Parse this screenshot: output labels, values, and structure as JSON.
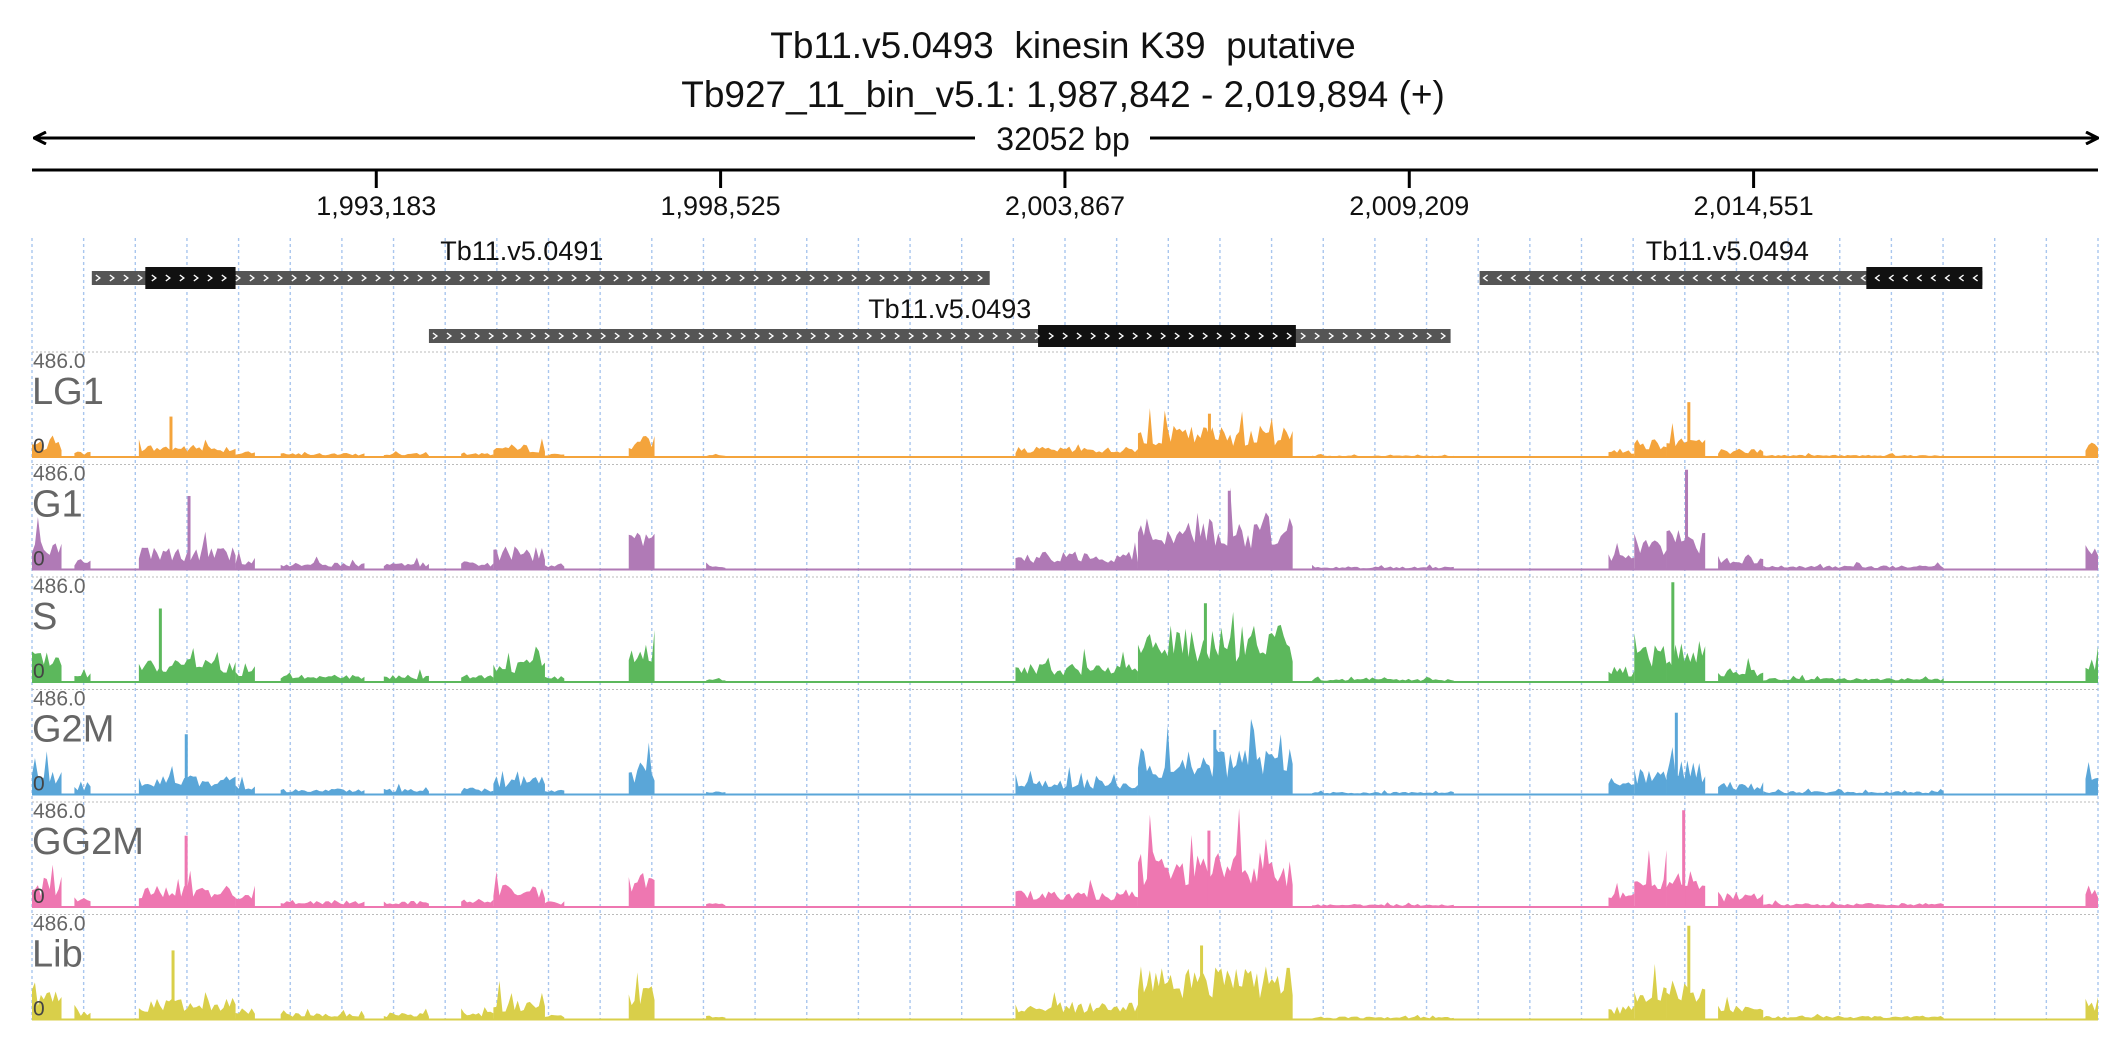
{
  "title": "Tb11.v5.0493  kinesin K39  putative",
  "subtitle": "Tb927_11_bin_v5.1: 1,987,842 - 2,019,894 (+)",
  "span_label": "32052 bp",
  "region": {
    "start": 1987842,
    "end": 2019894
  },
  "ticks": [
    {
      "pos": 1993183,
      "label": "1,993,183"
    },
    {
      "pos": 1998525,
      "label": "1,998,525"
    },
    {
      "pos": 2003867,
      "label": "2,003,867"
    },
    {
      "pos": 2009209,
      "label": "2,009,209"
    },
    {
      "pos": 2014551,
      "label": "2,014,551"
    }
  ],
  "genes": [
    {
      "id": "Tb11.v5.0491",
      "strand": "+",
      "start": 1988770,
      "end": 2002700,
      "cds_start": 1989600,
      "cds_end": 1991000,
      "row": 0
    },
    {
      "id": "Tb11.v5.0493",
      "strand": "+",
      "start": 1994000,
      "end": 2009850,
      "cds_start": 2003450,
      "cds_end": 2007450,
      "row": 1
    },
    {
      "id": "Tb11.v5.0494",
      "strand": "-",
      "start": 2010300,
      "end": 2018100,
      "cds_start": 2016300,
      "cds_end": 2018100,
      "row": 0
    }
  ],
  "tracks": [
    {
      "name": "LG1",
      "ymax_label": "486.0",
      "ymin_label": "0",
      "color": "#f4a43c",
      "scale": 0.55
    },
    {
      "name": "G1",
      "ymax_label": "486.0",
      "ymin_label": "0",
      "color": "#b07ab6",
      "scale": 1.0
    },
    {
      "name": "S",
      "ymax_label": "486.0",
      "ymin_label": "0",
      "color": "#5cb85c",
      "scale": 1.0
    },
    {
      "name": "G2M",
      "ymax_label": "486.0",
      "ymin_label": "0",
      "color": "#5aa6d8",
      "scale": 0.82
    },
    {
      "name": "GG2M",
      "ymax_label": "486.0",
      "ymin_label": "0",
      "color": "#ee77b1",
      "scale": 0.97
    },
    {
      "name": "Lib",
      "ymax_label": "486.0",
      "ymin_label": "0",
      "color": "#d9cf4a",
      "scale": 0.94
    }
  ],
  "coverage_regions": [
    {
      "start": 1987842,
      "end": 1988300,
      "level": 0.3
    },
    {
      "start": 1988500,
      "end": 1988750,
      "level": 0.1
    },
    {
      "start": 1989500,
      "end": 1991000,
      "level": 0.22,
      "peak": 0.7
    },
    {
      "start": 1991000,
      "end": 1991300,
      "level": 0.12
    },
    {
      "start": 1991700,
      "end": 1993000,
      "level": 0.07
    },
    {
      "start": 1993300,
      "end": 1994000,
      "level": 0.07
    },
    {
      "start": 1994500,
      "end": 1995000,
      "level": 0.08
    },
    {
      "start": 1995000,
      "end": 1995800,
      "level": 0.22
    },
    {
      "start": 1995800,
      "end": 1996100,
      "level": 0.06
    },
    {
      "start": 1997100,
      "end": 1997500,
      "level": 0.38
    },
    {
      "start": 1998300,
      "end": 1998600,
      "level": 0.04
    },
    {
      "start": 2003100,
      "end": 2005000,
      "level": 0.18
    },
    {
      "start": 2005000,
      "end": 2007400,
      "level": 0.55,
      "peak": 0.75
    },
    {
      "start": 2007700,
      "end": 2009900,
      "level": 0.03
    },
    {
      "start": 2012300,
      "end": 2012700,
      "level": 0.15
    },
    {
      "start": 2012700,
      "end": 2013200,
      "level": 0.35
    },
    {
      "start": 2013200,
      "end": 2013800,
      "level": 0.4,
      "peak": 0.95
    },
    {
      "start": 2014000,
      "end": 2014700,
      "level": 0.15
    },
    {
      "start": 2014700,
      "end": 2017500,
      "level": 0.04
    },
    {
      "start": 2019700,
      "end": 2019894,
      "level": 0.25
    }
  ]
}
